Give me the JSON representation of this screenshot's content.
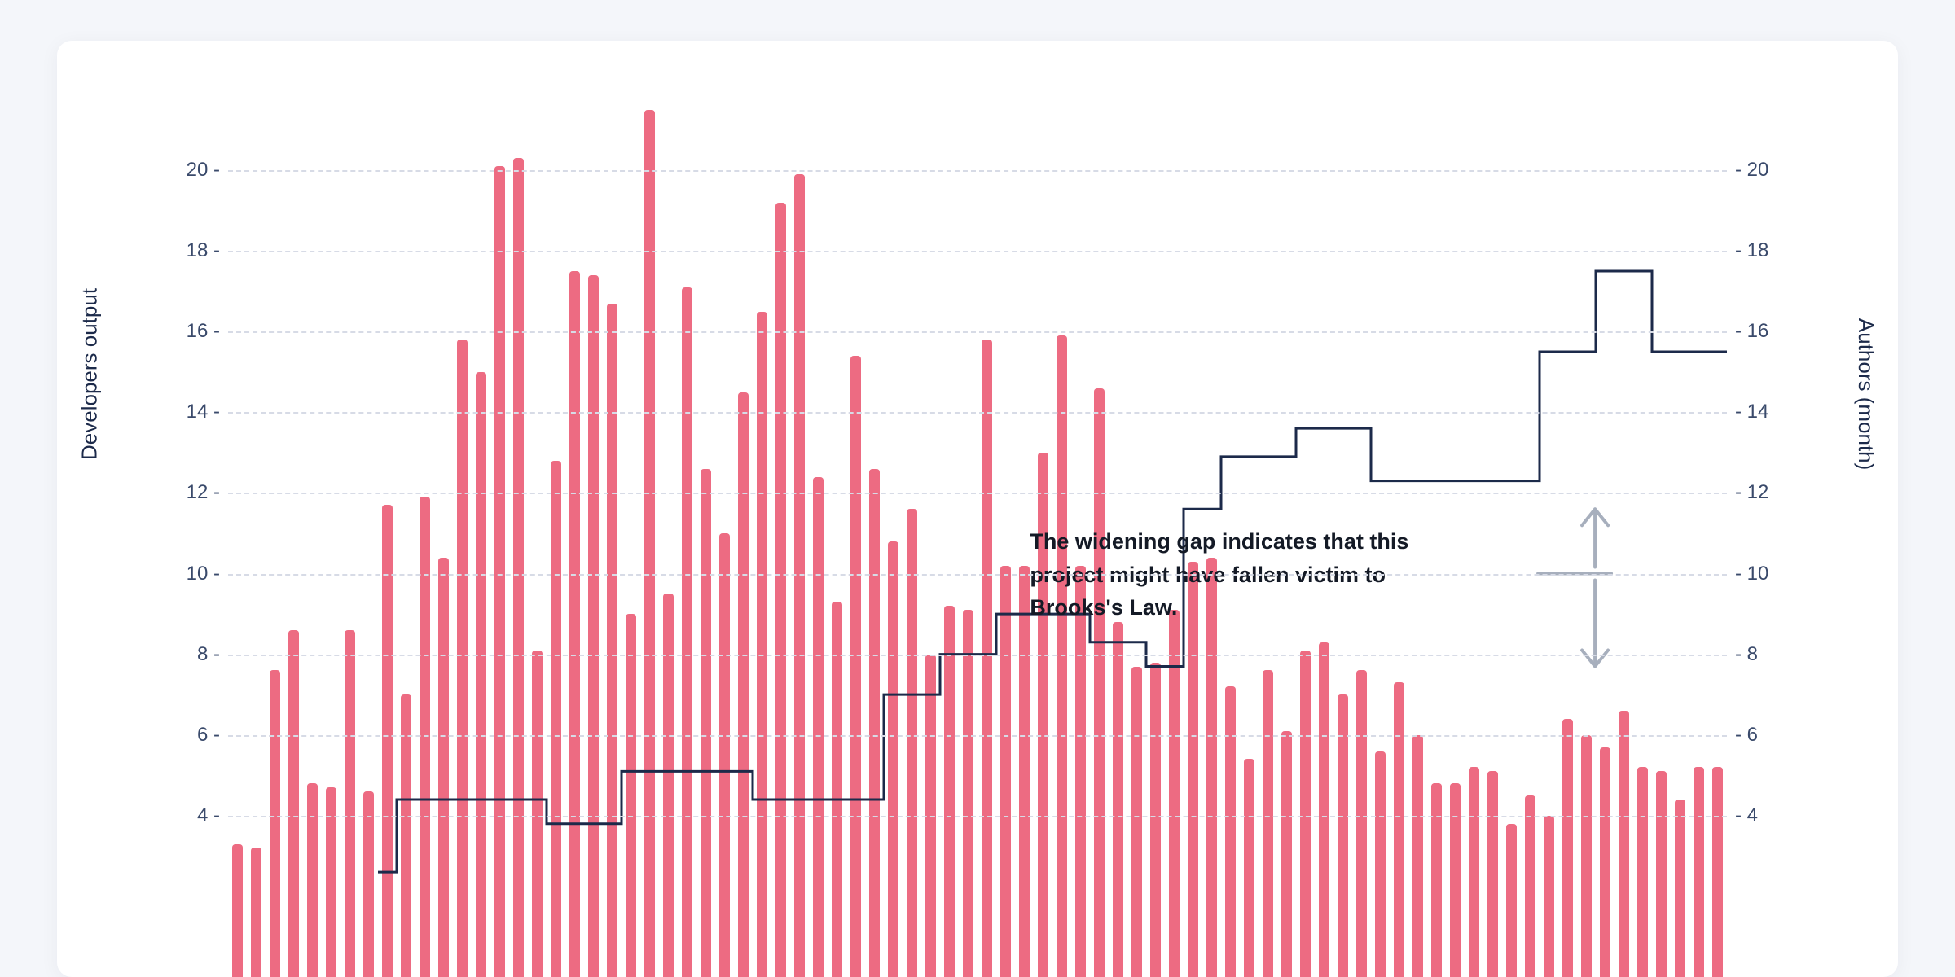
{
  "chart": {
    "type": "bar+step-line",
    "background_color": "#ffffff",
    "page_background": "#f4f6fa",
    "grid_color": "#d7dbe6",
    "bar_color": "#ed6b82",
    "line_color": "#1c2a4a",
    "arrow_color": "#a7afbd",
    "tick_color": "#3a4a6b",
    "axis_label_color": "#1c2a4a",
    "text_color": "#141a26",
    "axis_label_fontsize": 26,
    "tick_fontsize": 24,
    "annotation_fontsize": 27,
    "line_width": 3,
    "bar_width_ratio": 0.58,
    "left_axis": {
      "label": "Developers output",
      "min": 0,
      "max": 22,
      "ticks": [
        4,
        6,
        8,
        10,
        12,
        14,
        16,
        18,
        20
      ]
    },
    "right_axis": {
      "label": "Authors (month)",
      "min": 0,
      "max": 22,
      "ticks": [
        4,
        6,
        8,
        10,
        12,
        14,
        16,
        18,
        20
      ]
    },
    "bars": [
      3.3,
      3.2,
      7.6,
      8.6,
      4.8,
      4.7,
      8.6,
      4.6,
      11.7,
      7.0,
      11.9,
      10.4,
      15.8,
      15.0,
      20.1,
      20.3,
      8.1,
      12.8,
      17.5,
      17.4,
      16.7,
      9.0,
      21.5,
      9.5,
      17.1,
      12.6,
      11.0,
      14.5,
      16.5,
      19.2,
      19.9,
      12.4,
      9.3,
      15.4,
      12.6,
      10.8,
      11.6,
      8.0,
      9.2,
      9.1,
      15.8,
      10.2,
      10.2,
      13.0,
      15.9,
      10.2,
      14.6,
      8.8,
      7.7,
      7.8,
      9.1,
      10.3,
      10.4,
      7.2,
      5.4,
      7.6,
      6.1,
      8.1,
      8.3,
      7.0,
      7.6,
      5.6,
      7.3,
      6.0,
      4.8,
      4.8,
      5.2,
      5.1,
      3.8,
      4.5,
      4.0,
      6.4,
      6.0,
      5.7,
      6.6,
      5.2,
      5.1,
      4.4,
      5.2,
      5.2
    ],
    "step_values": [
      null,
      null,
      null,
      null,
      null,
      null,
      null,
      null,
      2.6,
      4.4,
      4.4,
      4.4,
      4.4,
      4.4,
      4.4,
      4.4,
      4.4,
      3.8,
      3.8,
      3.8,
      3.8,
      5.1,
      5.1,
      5.1,
      5.1,
      5.1,
      5.1,
      5.1,
      4.4,
      4.4,
      4.4,
      4.4,
      4.4,
      4.4,
      4.4,
      7.0,
      7.0,
      7.0,
      8.0,
      8.0,
      8.0,
      9.0,
      9.0,
      9.0,
      9.0,
      9.0,
      8.3,
      8.3,
      8.3,
      7.7,
      7.7,
      11.6,
      11.6,
      12.9,
      12.9,
      12.9,
      12.9,
      13.6,
      13.6,
      13.6,
      13.6,
      12.3,
      12.3,
      12.3,
      12.3,
      12.3,
      12.3,
      12.3,
      12.3,
      12.3,
      15.5,
      15.5,
      15.5,
      17.5,
      17.5,
      17.5,
      15.5,
      15.5,
      15.5,
      15.5
    ],
    "annotation": {
      "text": "The widening gap indicates that this project might have fallen victim to Brooks's Law.",
      "arrow_top_y": 11.6,
      "arrow_bottom_y": 7.7,
      "arrow_mid_y": 10.0
    }
  }
}
